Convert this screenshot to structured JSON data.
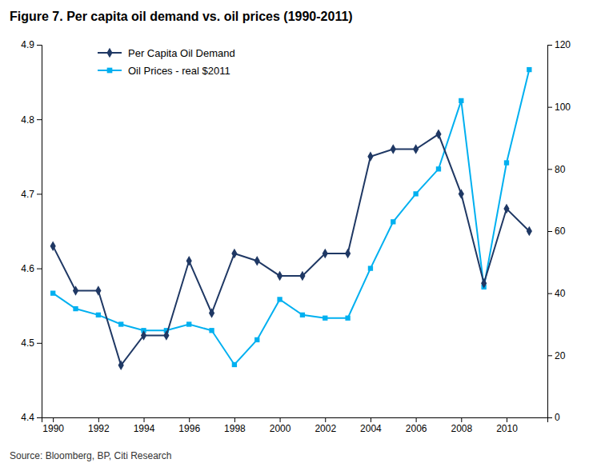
{
  "chart_data": {
    "type": "line",
    "title": "Figure 7. Per capita oil demand vs. oil prices (1990-2011)",
    "annotations": [
      "Source: Bloomberg, BP, Citi Research"
    ],
    "x": [
      1990,
      1991,
      1992,
      1993,
      1994,
      1995,
      1996,
      1997,
      1998,
      1999,
      2000,
      2001,
      2002,
      2003,
      2004,
      2005,
      2006,
      2007,
      2008,
      2009,
      2010,
      2011
    ],
    "series": [
      {
        "name": "Per Capita Oil Demand",
        "color": "#1f3864",
        "marker": "diamond",
        "values": [
          4.63,
          4.57,
          4.57,
          4.47,
          4.51,
          4.51,
          4.61,
          4.54,
          4.62,
          4.61,
          4.59,
          4.59,
          4.62,
          4.62,
          4.75,
          4.76,
          4.76,
          4.78,
          4.7,
          4.58,
          4.68,
          4.65
        ]
      },
      {
        "name": "Oil Prices - real $2011",
        "color": "#00b0f0",
        "marker": "square",
        "axis": "y2",
        "values": [
          40,
          35,
          33,
          30,
          28,
          28,
          30,
          28,
          17,
          25,
          38,
          33,
          32,
          32,
          48,
          63,
          72,
          80,
          102,
          42,
          82,
          112
        ]
      }
    ],
    "xlim": [
      1989.5,
      2011.8
    ],
    "xticks": [
      1990,
      1992,
      1994,
      1996,
      1998,
      2000,
      2002,
      2004,
      2006,
      2008,
      2010
    ],
    "ylim": [
      4.4,
      4.9
    ],
    "yticks": [
      4.4,
      4.5,
      4.6,
      4.7,
      4.8,
      4.9
    ],
    "y2lim": [
      0,
      120
    ],
    "y2ticks": [
      0,
      20,
      40,
      60,
      80,
      100,
      120
    ],
    "legend": "upper left",
    "grid": false
  }
}
